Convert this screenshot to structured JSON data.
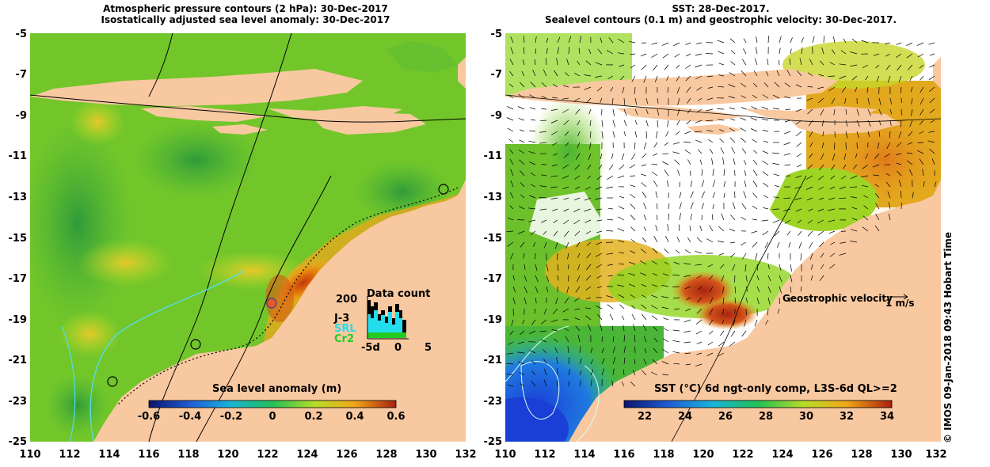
{
  "left_panel": {
    "title_line1": "Atmospheric pressure contours (2 hPa): 30-Dec-2017",
    "title_line2": "Isostatically adjusted sea level anomaly: 30-Dec-2017",
    "colorbar": {
      "title": "Sea level anomaly (m)",
      "ticks": [
        "-0.6",
        "-0.4",
        "-0.2",
        "0",
        "0.2",
        "0.4",
        "0.6"
      ]
    },
    "data_count": {
      "title": "Data count",
      "ymax_label": "200",
      "series": [
        "J-3",
        "SRL",
        "Cr2"
      ],
      "series_colors": [
        "#000000",
        "#22ddee",
        "#22cc22"
      ],
      "x_ticks": [
        "-5d",
        "0",
        "5"
      ]
    },
    "tide_gauge_markers": 4
  },
  "right_panel": {
    "title_line1": "SST: 28-Dec-2017.",
    "title_line2": "Sealevel contours (0.1 m) and geostrophic velocity: 30-Dec-2017.",
    "velocity_label": "Geostrophic velocity",
    "velocity_scale": "1 m/s",
    "colorbar": {
      "title": "SST (°C) 6d ngt-only comp, L3S-6d QL>=2",
      "ticks": [
        "22",
        "24",
        "26",
        "28",
        "30",
        "32",
        "34"
      ]
    }
  },
  "axes": {
    "y_ticks": [
      "-5",
      "-7",
      "-9",
      "-11",
      "-13",
      "-15",
      "-17",
      "-19",
      "-21",
      "-23",
      "-25"
    ],
    "x_ticks": [
      "110",
      "112",
      "114",
      "116",
      "118",
      "120",
      "122",
      "124",
      "126",
      "128",
      "130",
      "132"
    ],
    "lat_range": [
      -25,
      -5
    ],
    "lon_range": [
      110,
      132
    ]
  },
  "credit": "© IMOS 09-Jan-2018 09:43 Hobart Time",
  "colors": {
    "land": "#f8c8a0",
    "sla_low": "#3da52f",
    "sla_mid": "#8fd41e",
    "sla_high": "#d4420c",
    "sst_cold": "#1a3fd6",
    "sst_warm": "#a82410"
  }
}
